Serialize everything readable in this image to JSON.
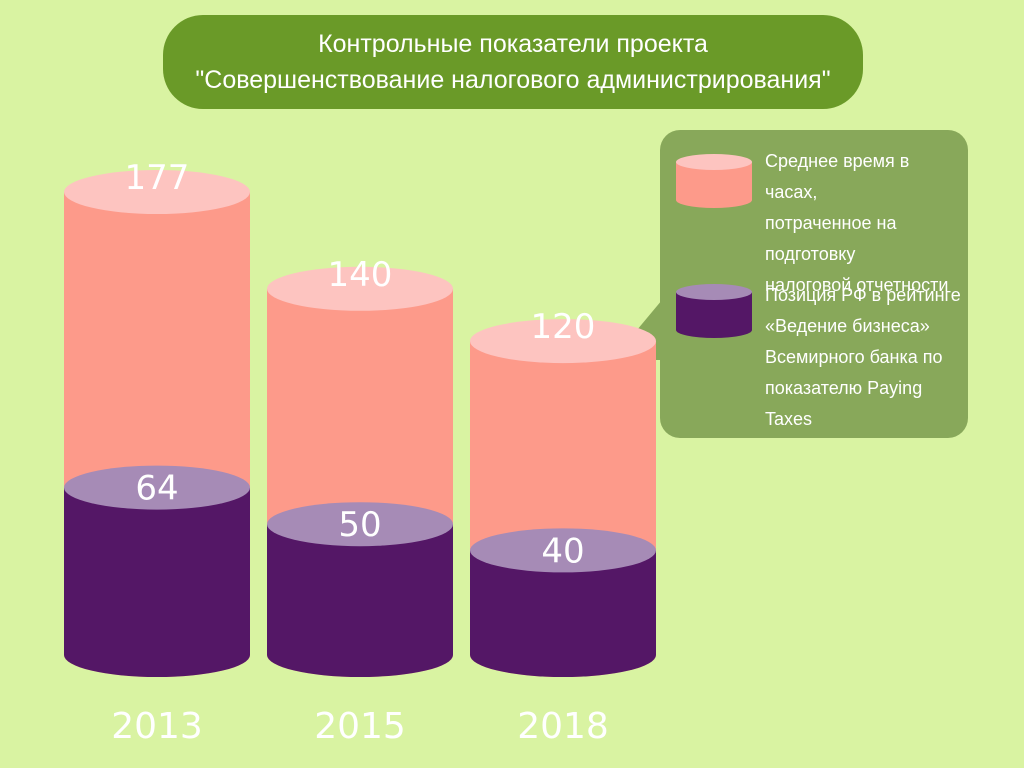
{
  "title": {
    "line1": "Контрольные показатели проекта",
    "line2": "\"Совершенствование налогового администрирования\""
  },
  "legend": [
    {
      "label_lines": [
        "Среднее время в часах,",
        "потраченное на",
        "подготовку",
        "налоговой отчетности"
      ],
      "color": "#fd9a8a",
      "top_color": "#fdc4c0"
    },
    {
      "label_lines": [
        "Позиция РФ в рейтинге",
        "«Ведение бизнеса»",
        "Всемирного банка по",
        "показателю Paying",
        "Taxes"
      ],
      "color": "#541766",
      "top_color": "#a68bb6"
    }
  ],
  "colors": {
    "background": "#d9f3a2",
    "title_bg": "#6a9a28",
    "legend_bg": "#88a85a",
    "hours_body": "#fd9a8a",
    "hours_top": "#fdc4c0",
    "rank_body": "#541766",
    "rank_top": "#a68bb6"
  },
  "chart_data": {
    "type": "bar",
    "style": "3d-cylinder",
    "categories": [
      "2013",
      "2015",
      "2018"
    ],
    "series": [
      {
        "name": "Среднее время в часах, потраченное на подготовку налоговой отчетности",
        "values": [
          177,
          140,
          120
        ]
      },
      {
        "name": "Позиция РФ в рейтинге «Ведение бизнеса» Всемирного банка по показателю Paying Taxes",
        "values": [
          64,
          50,
          40
        ]
      }
    ],
    "data_labels": [
      [
        "177",
        "140",
        "120"
      ],
      [
        "64",
        "50",
        "40"
      ]
    ],
    "ylim": [
      0,
      177
    ],
    "grid": false,
    "legend_position": "right"
  }
}
